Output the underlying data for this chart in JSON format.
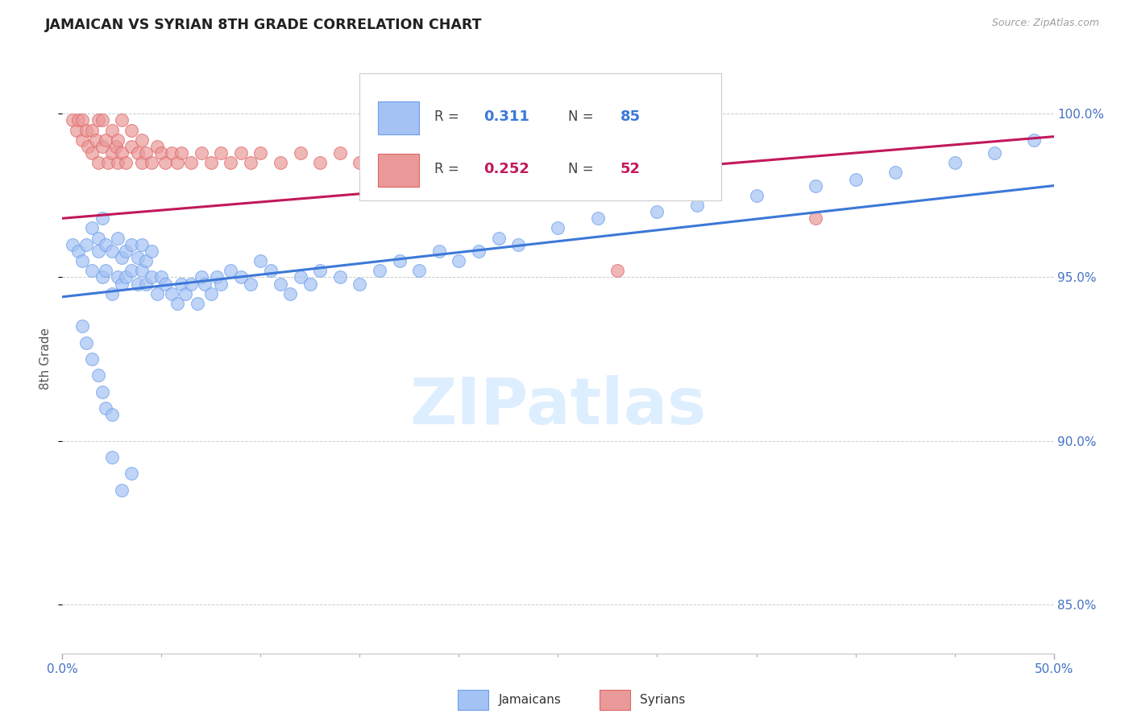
{
  "title": "JAMAICAN VS SYRIAN 8TH GRADE CORRELATION CHART",
  "source": "Source: ZipAtlas.com",
  "ylabel": "8th Grade",
  "xlim": [
    0.0,
    0.5
  ],
  "ylim": [
    0.835,
    1.015
  ],
  "xtick_major": [
    0.0,
    0.5
  ],
  "xtick_major_labels": [
    "0.0%",
    "50.0%"
  ],
  "xtick_minor": [
    0.05,
    0.1,
    0.15,
    0.2,
    0.25,
    0.3,
    0.35,
    0.4,
    0.45
  ],
  "ytick_vals_right": [
    0.85,
    0.9,
    0.95,
    1.0
  ],
  "ytick_labels_right": [
    "85.0%",
    "90.0%",
    "95.0%",
    "100.0%"
  ],
  "legend_blue_r": "0.311",
  "legend_blue_n": "85",
  "legend_pink_r": "0.252",
  "legend_pink_n": "52",
  "blue_color": "#a4c2f4",
  "blue_edge_color": "#6d9eeb",
  "pink_color": "#ea9999",
  "pink_edge_color": "#e06666",
  "blue_line_color": "#3c78d8",
  "pink_line_color": "#c2185b",
  "title_color": "#212121",
  "source_color": "#9e9e9e",
  "axis_label_color": "#555555",
  "tick_color": "#4472c4",
  "grid_color": "#cccccc",
  "watermark_text": "ZIPatlas",
  "watermark_color": "#ddeeff",
  "blue_scatter_x": [
    0.005,
    0.008,
    0.01,
    0.012,
    0.015,
    0.015,
    0.018,
    0.018,
    0.02,
    0.02,
    0.022,
    0.022,
    0.025,
    0.025,
    0.028,
    0.028,
    0.03,
    0.03,
    0.032,
    0.032,
    0.035,
    0.035,
    0.038,
    0.038,
    0.04,
    0.04,
    0.042,
    0.042,
    0.045,
    0.045,
    0.048,
    0.05,
    0.052,
    0.055,
    0.058,
    0.06,
    0.062,
    0.065,
    0.068,
    0.07,
    0.072,
    0.075,
    0.078,
    0.08,
    0.085,
    0.09,
    0.095,
    0.1,
    0.105,
    0.11,
    0.115,
    0.12,
    0.125,
    0.13,
    0.14,
    0.15,
    0.16,
    0.17,
    0.18,
    0.19,
    0.2,
    0.21,
    0.22,
    0.23,
    0.25,
    0.27,
    0.3,
    0.32,
    0.35,
    0.38,
    0.4,
    0.42,
    0.45,
    0.47,
    0.49,
    0.01,
    0.012,
    0.015,
    0.018,
    0.02,
    0.022,
    0.025,
    0.025,
    0.03,
    0.035
  ],
  "blue_scatter_y": [
    0.96,
    0.958,
    0.955,
    0.96,
    0.952,
    0.965,
    0.958,
    0.962,
    0.95,
    0.968,
    0.952,
    0.96,
    0.945,
    0.958,
    0.95,
    0.962,
    0.948,
    0.956,
    0.95,
    0.958,
    0.952,
    0.96,
    0.948,
    0.956,
    0.952,
    0.96,
    0.948,
    0.955,
    0.95,
    0.958,
    0.945,
    0.95,
    0.948,
    0.945,
    0.942,
    0.948,
    0.945,
    0.948,
    0.942,
    0.95,
    0.948,
    0.945,
    0.95,
    0.948,
    0.952,
    0.95,
    0.948,
    0.955,
    0.952,
    0.948,
    0.945,
    0.95,
    0.948,
    0.952,
    0.95,
    0.948,
    0.952,
    0.955,
    0.952,
    0.958,
    0.955,
    0.958,
    0.962,
    0.96,
    0.965,
    0.968,
    0.97,
    0.972,
    0.975,
    0.978,
    0.98,
    0.982,
    0.985,
    0.988,
    0.992,
    0.935,
    0.93,
    0.925,
    0.92,
    0.915,
    0.91,
    0.908,
    0.895,
    0.885,
    0.89
  ],
  "pink_scatter_x": [
    0.005,
    0.007,
    0.008,
    0.01,
    0.01,
    0.012,
    0.013,
    0.015,
    0.015,
    0.017,
    0.018,
    0.018,
    0.02,
    0.02,
    0.022,
    0.023,
    0.025,
    0.025,
    0.027,
    0.028,
    0.028,
    0.03,
    0.03,
    0.032,
    0.035,
    0.035,
    0.038,
    0.04,
    0.04,
    0.042,
    0.045,
    0.048,
    0.05,
    0.052,
    0.055,
    0.058,
    0.06,
    0.065,
    0.07,
    0.075,
    0.08,
    0.085,
    0.09,
    0.095,
    0.1,
    0.11,
    0.12,
    0.13,
    0.14,
    0.15,
    0.28,
    0.38
  ],
  "pink_scatter_y": [
    0.998,
    0.995,
    0.998,
    0.992,
    0.998,
    0.995,
    0.99,
    0.988,
    0.995,
    0.992,
    0.998,
    0.985,
    0.99,
    0.998,
    0.992,
    0.985,
    0.988,
    0.995,
    0.99,
    0.985,
    0.992,
    0.988,
    0.998,
    0.985,
    0.99,
    0.995,
    0.988,
    0.985,
    0.992,
    0.988,
    0.985,
    0.99,
    0.988,
    0.985,
    0.988,
    0.985,
    0.988,
    0.985,
    0.988,
    0.985,
    0.988,
    0.985,
    0.988,
    0.985,
    0.988,
    0.985,
    0.988,
    0.985,
    0.988,
    0.985,
    0.952,
    0.968
  ],
  "blue_trend": [
    0.0,
    0.5,
    0.944,
    0.978
  ],
  "pink_trend": [
    0.0,
    0.5,
    0.968,
    0.993
  ]
}
